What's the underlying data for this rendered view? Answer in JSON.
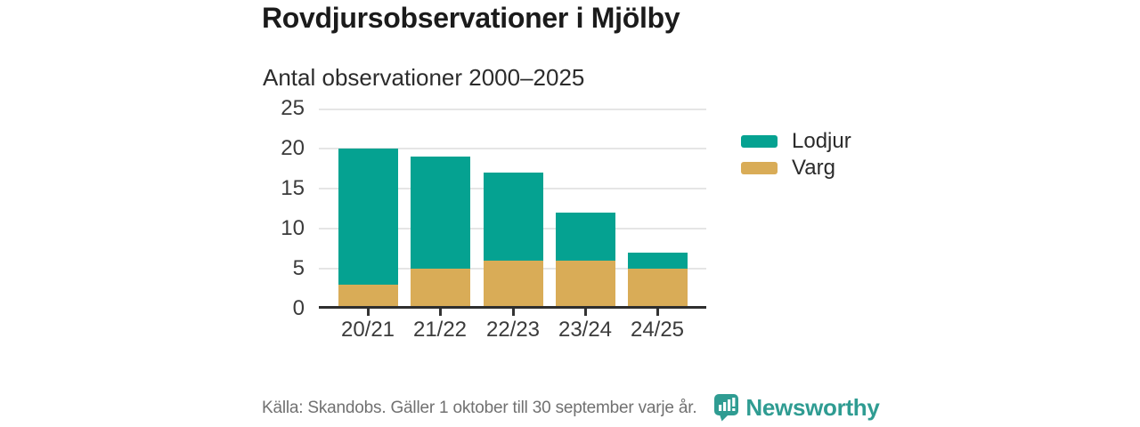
{
  "chart_data": {
    "type": "bar",
    "stacked": true,
    "title": "Rovdjursobservationer i Mjölby",
    "subtitle": "Antal observationer 2000–2025",
    "categories": [
      "20/21",
      "21/22",
      "22/23",
      "23/24",
      "24/25"
    ],
    "series": [
      {
        "name": "Lodjur",
        "color": "#05a291",
        "values": [
          17,
          14,
          11,
          6,
          2
        ]
      },
      {
        "name": "Varg",
        "color": "#d9ac57",
        "values": [
          3,
          5,
          6,
          6,
          5
        ]
      }
    ],
    "totals": [
      20,
      19,
      17,
      12,
      7
    ],
    "ylim": [
      0,
      25
    ],
    "yticks": [
      0,
      5,
      10,
      15,
      20,
      25
    ],
    "grid": "horizontal",
    "legend_position": "right",
    "axis_color": "#2e2e2e",
    "gridline_color": "#e5e5e5"
  },
  "footer": {
    "source": "Källa: Skandobs. Gäller 1 oktober till 30 september varje år.",
    "brand": "Newsworthy",
    "brand_color": "#2f9c92"
  }
}
